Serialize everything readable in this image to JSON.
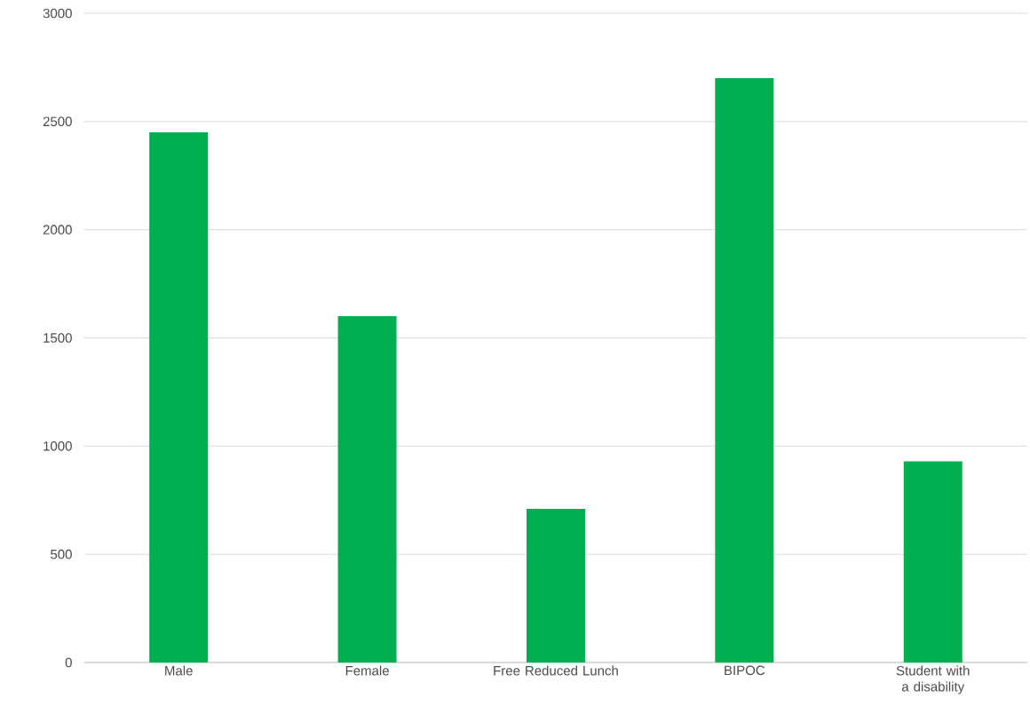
{
  "chart_data": {
    "type": "bar",
    "categories": [
      "Male",
      "Female",
      "Free Reduced Lunch",
      "BIPOC",
      "Student with a disability"
    ],
    "values": [
      2450,
      1600,
      710,
      2700,
      930
    ],
    "color": "#00b050",
    "ylim": [
      0,
      3000
    ],
    "yticks": [
      0,
      500,
      1000,
      1500,
      2000,
      2500,
      3000
    ],
    "grid": "y"
  }
}
